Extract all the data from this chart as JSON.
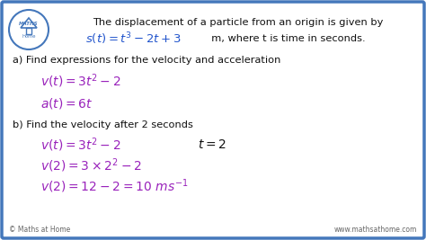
{
  "bg_color": "#ffffff",
  "border_color": "#4477bb",
  "title_line1": "The displacement of a particle from an origin is given by",
  "title_line2_math": "$s(t) = t^3 - 2t + 3$",
  "title_line2_plain": "  m, where t is time in seconds.",
  "math_color": "#2255cc",
  "purple_color": "#9922bb",
  "black_color": "#111111",
  "part_a_label": "a) Find expressions for the velocity and acceleration",
  "part_a_v": "$v(t) = 3t^2 - 2$",
  "part_a_a": "$a(t) = 6t$",
  "part_b_label": "b) Find the velocity after 2 seconds",
  "part_b_1": "$v(t) = 3t^2 - 2$",
  "part_b_1b": "$t = 2$",
  "part_b_2": "$v(2) = 3 \\times 2^2 - 2$",
  "part_b_3": "$v(2) = 12 - 2 = 10 \\ ms^{-1}$",
  "footer_left": "© Maths at Home",
  "footer_right": "www.mathsathome.com",
  "logo_top": "MATHS",
  "logo_bot": "Home"
}
